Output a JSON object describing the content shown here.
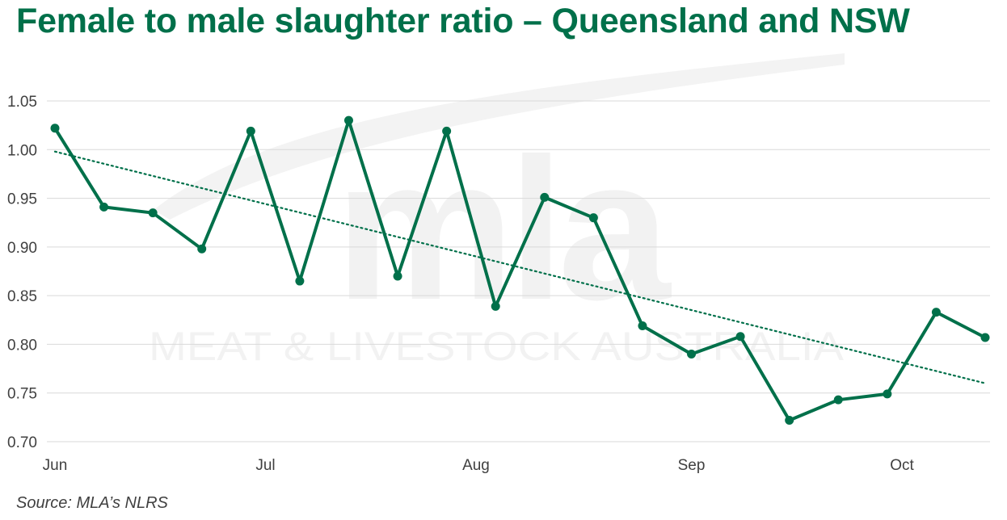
{
  "title": "Female to male slaughter ratio – Queensland and NSW",
  "source": "Source: MLA’s NLRS",
  "watermark": {
    "logo_text": "mla",
    "subtitle": "MEAT & LIVESTOCK AUSTRALIA"
  },
  "colors": {
    "title": "#00704a",
    "line": "#00704a",
    "trendline": "#00704a",
    "gridline": "#d9d9d9",
    "tick_text": "#404040",
    "watermark": "#f2f2f2"
  },
  "chart_data": {
    "type": "line",
    "title": "Female to male slaughter ratio – Queensland and NSW",
    "xlabel": "",
    "ylabel": "",
    "ylim": [
      0.7,
      1.05
    ],
    "yticks": [
      0.7,
      0.75,
      0.8,
      0.85,
      0.9,
      0.95,
      1.0,
      1.05
    ],
    "ytick_labels": [
      "0.70",
      "0.75",
      "0.80",
      "0.85",
      "0.90",
      "0.95",
      "1.00",
      "1.05"
    ],
    "grid": true,
    "legend": "none",
    "x_month_labels": [
      {
        "label": "Jun",
        "index": 0
      },
      {
        "label": "Jul",
        "index": 4.3
      },
      {
        "label": "Aug",
        "index": 8.6
      },
      {
        "label": "Sep",
        "index": 13.0
      },
      {
        "label": "Oct",
        "index": 17.3
      }
    ],
    "series": [
      {
        "values": [
          1.022,
          0.941,
          0.935,
          0.898,
          1.019,
          0.865,
          1.03,
          0.87,
          1.019,
          0.839,
          0.951,
          0.93,
          0.819,
          0.79,
          0.808,
          0.722,
          0.743,
          0.749,
          0.833,
          0.807
        ]
      }
    ],
    "trendline": {
      "type": "linear",
      "style": "dotted",
      "start": 0.998,
      "end": 0.76
    }
  }
}
